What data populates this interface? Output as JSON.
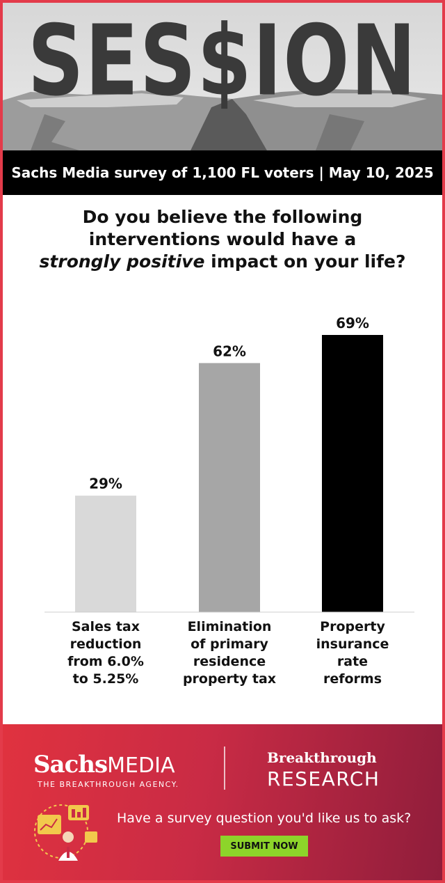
{
  "header": {
    "title": "SES$ION",
    "banner": "Sachs Media survey of 1,100 FL voters | May 10, 2025"
  },
  "question": {
    "line1": "Do you believe the following",
    "line2": "interventions would have a",
    "emphasis": "strongly positive",
    "line3_rest": "impact on your life?"
  },
  "chart_data": {
    "type": "bar",
    "categories": [
      [
        "Sales tax",
        "reduction",
        "from 6.0%",
        "to 5.25%"
      ],
      [
        "Elimination",
        "of primary",
        "residence",
        "property tax"
      ],
      [
        "Property",
        "insurance",
        "rate",
        "reforms"
      ]
    ],
    "values": [
      29,
      62,
      69
    ],
    "value_labels": [
      "29%",
      "62%",
      "69%"
    ],
    "colors": [
      "#d9d9d9",
      "#a6a6a6",
      "#000000"
    ],
    "ylim": [
      0,
      100
    ],
    "grid": false
  },
  "footer": {
    "logo_main": "Sachs",
    "logo_media": "MEDIA",
    "tagline": "THE BREAKTHROUGH AGENCY.",
    "research_top": "Breakthrough",
    "research_bottom": "RESEARCH",
    "cta_text": "Have a survey question you'd like us to ask?",
    "button_label": "SUBMIT NOW",
    "icon": "research-team-icon"
  },
  "colors": {
    "border": "#e33b4a",
    "banner": "#000000",
    "button": "#8dd42a"
  }
}
